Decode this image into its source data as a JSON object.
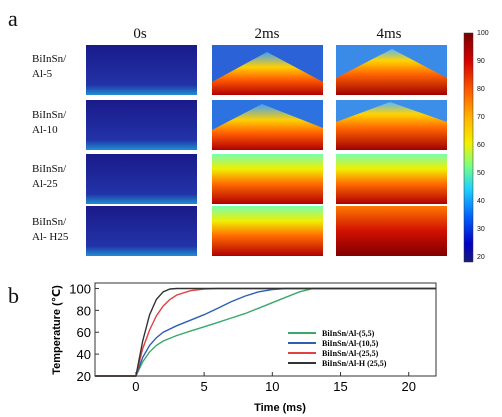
{
  "panel_a": {
    "letter": "a",
    "columns": [
      "0s",
      "2ms",
      "4ms"
    ],
    "rows": [
      [
        "BiInSn/",
        "Al-5"
      ],
      [
        "BiInSn/",
        "Al-10"
      ],
      [
        "BiInSn/",
        "Al-25"
      ],
      [
        "BiInSn/",
        "Al- H25"
      ]
    ],
    "colorbar": {
      "ticks": [
        "100",
        "90",
        "80",
        "70",
        "60",
        "50",
        "40",
        "30",
        "20"
      ],
      "colors": [
        "#7a0000",
        "#d40000",
        "#ff5a00",
        "#ffb400",
        "#f4f000",
        "#79ff82",
        "#1fd2ff",
        "#0064ff",
        "#0000c8",
        "#1a1a78"
      ]
    }
  },
  "panel_b": {
    "letter": "b",
    "chart_data": {
      "type": "line",
      "xlabel": "Time (ms)",
      "ylabel": "Temperature (℃)",
      "xlim": [
        -3,
        22
      ],
      "ylim": [
        20,
        105
      ],
      "xticks": [
        "0",
        "5",
        "10",
        "15",
        "20"
      ],
      "yticks": [
        "20",
        "40",
        "60",
        "80",
        "100"
      ],
      "legend_position": "bottom-right",
      "series": [
        {
          "name": "BiInSn/Al-(5,5)",
          "color": "#3aa86b",
          "x": [
            -3,
            0,
            0.5,
            1,
            1.5,
            2,
            3,
            4,
            5,
            6,
            7,
            8,
            9,
            10,
            11,
            12,
            13,
            22
          ],
          "y": [
            20,
            20,
            33,
            42,
            48,
            52,
            57,
            61,
            65,
            69,
            73,
            77,
            82,
            87,
            92,
            97,
            100,
            100
          ]
        },
        {
          "name": "BiInSn/Al-(10,5)",
          "color": "#2f5fb3",
          "x": [
            -3,
            0,
            0.5,
            1,
            1.5,
            2,
            3,
            4,
            5,
            6,
            7,
            8,
            9,
            10,
            11,
            22
          ],
          "y": [
            20,
            20,
            37,
            48,
            55,
            60,
            66,
            71,
            76,
            82,
            88,
            93,
            97,
            99,
            100,
            100
          ]
        },
        {
          "name": "BiInSn/Al-(25,5)",
          "color": "#e04141",
          "x": [
            -3,
            0,
            0.5,
            1,
            1.5,
            2,
            2.5,
            3,
            4,
            5,
            6,
            22
          ],
          "y": [
            20,
            20,
            45,
            62,
            75,
            84,
            90,
            94,
            98,
            99.5,
            100,
            100
          ]
        },
        {
          "name": "BiInSn/Al-H (25,5)",
          "color": "#333333",
          "x": [
            -3,
            0,
            0.5,
            1,
            1.5,
            2,
            2.5,
            3,
            22
          ],
          "y": [
            20,
            20,
            52,
            76,
            90,
            97,
            99.5,
            100,
            100
          ]
        }
      ]
    }
  }
}
